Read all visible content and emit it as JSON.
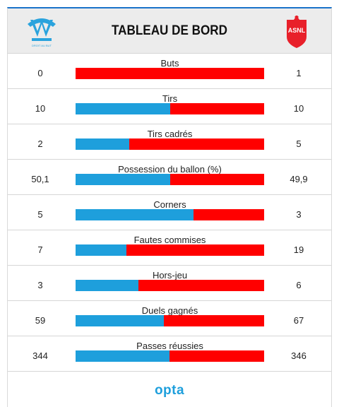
{
  "header": {
    "title": "TABLEAU DE BORD",
    "home_logo_icon": "om-club-crest-icon",
    "away_logo_icon": "asnl-club-crest-icon",
    "home_logo_text": "DROIT AU BUT",
    "away_logo_text": "ASNL"
  },
  "colors": {
    "home": "#1e9fdc",
    "away": "#ff0000",
    "accent": "#1a73c9"
  },
  "stats": [
    {
      "label": "Buts",
      "home": "0",
      "away": "1",
      "home_share": 0.0
    },
    {
      "label": "Tirs",
      "home": "10",
      "away": "10",
      "home_share": 0.5
    },
    {
      "label": "Tirs cadrés",
      "home": "2",
      "away": "5",
      "home_share": 0.286
    },
    {
      "label": "Possession du ballon (%)",
      "home": "50,1",
      "away": "49,9",
      "home_share": 0.501
    },
    {
      "label": "Corners",
      "home": "5",
      "away": "3",
      "home_share": 0.625
    },
    {
      "label": "Fautes commises",
      "home": "7",
      "away": "19",
      "home_share": 0.269
    },
    {
      "label": "Hors-jeu",
      "home": "3",
      "away": "6",
      "home_share": 0.333
    },
    {
      "label": "Duels gagnés",
      "home": "59",
      "away": "67",
      "home_share": 0.468
    },
    {
      "label": "Passes réussies",
      "home": "344",
      "away": "346",
      "home_share": 0.499
    }
  ],
  "footer": {
    "brand": "opta"
  }
}
